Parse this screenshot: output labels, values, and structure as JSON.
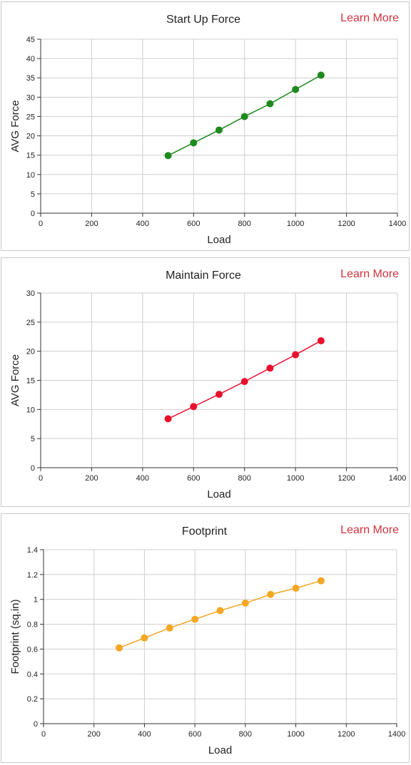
{
  "chart_data": [
    {
      "type": "line",
      "title": "Start Up Force",
      "link_label": "Learn More",
      "xlabel": "Load",
      "ylabel": "AVG Force",
      "xlim": [
        0,
        1400
      ],
      "ylim": [
        0,
        45
      ],
      "x_ticks": [
        "0",
        "200",
        "400",
        "600",
        "800",
        "1000",
        "1200",
        "1400"
      ],
      "y_ticks": [
        "0",
        "5",
        "10",
        "15",
        "20",
        "25",
        "30",
        "35",
        "40",
        "45"
      ],
      "x_tick_values": [
        0,
        200,
        400,
        600,
        800,
        1000,
        1200,
        1400
      ],
      "y_tick_values": [
        0,
        5,
        10,
        15,
        20,
        25,
        30,
        35,
        40,
        45
      ],
      "grid": true,
      "series": [
        {
          "color": "#1e8a1e",
          "x": [
            500,
            600,
            700,
            800,
            900,
            1000,
            1100
          ],
          "y": [
            14.9,
            18.2,
            21.5,
            25.0,
            28.3,
            32.0,
            35.7
          ]
        }
      ]
    },
    {
      "type": "line",
      "title": "Maintain Force",
      "link_label": "Learn More",
      "xlabel": "Load",
      "ylabel": "AVG Force",
      "xlim": [
        0,
        1400
      ],
      "ylim": [
        0,
        30
      ],
      "x_ticks": [
        "0",
        "200",
        "400",
        "600",
        "800",
        "1000",
        "1200",
        "1400"
      ],
      "y_ticks": [
        "0",
        "5",
        "10",
        "15",
        "20",
        "25",
        "30"
      ],
      "x_tick_values": [
        0,
        200,
        400,
        600,
        800,
        1000,
        1200,
        1400
      ],
      "y_tick_values": [
        0,
        5,
        10,
        15,
        20,
        25,
        30
      ],
      "grid": true,
      "series": [
        {
          "color": "#e8112d",
          "x": [
            500,
            600,
            700,
            800,
            900,
            1000,
            1100
          ],
          "y": [
            8.4,
            10.5,
            12.6,
            14.8,
            17.1,
            19.4,
            21.8
          ]
        }
      ]
    },
    {
      "type": "line",
      "title": "Footprint",
      "link_label": "Learn More",
      "xlabel": "Load",
      "ylabel": "Footprint (sq.in)",
      "xlim": [
        0,
        1400
      ],
      "ylim": [
        0,
        1.4
      ],
      "x_ticks": [
        "0",
        "200",
        "400",
        "600",
        "800",
        "1000",
        "1200",
        "1400"
      ],
      "y_ticks": [
        "0",
        "0.2",
        "0.4",
        "0.6",
        "0.8",
        "1",
        "1.2",
        "1.4"
      ],
      "x_tick_values": [
        0,
        200,
        400,
        600,
        800,
        1000,
        1200,
        1400
      ],
      "y_tick_values": [
        0,
        0.2,
        0.4,
        0.6,
        0.8,
        1.0,
        1.2,
        1.4
      ],
      "grid": true,
      "series": [
        {
          "color": "#f5a623",
          "x": [
            300,
            400,
            500,
            600,
            700,
            800,
            900,
            1000,
            1100
          ],
          "y": [
            0.61,
            0.69,
            0.77,
            0.84,
            0.91,
            0.97,
            1.04,
            1.09,
            1.15
          ]
        }
      ]
    }
  ]
}
